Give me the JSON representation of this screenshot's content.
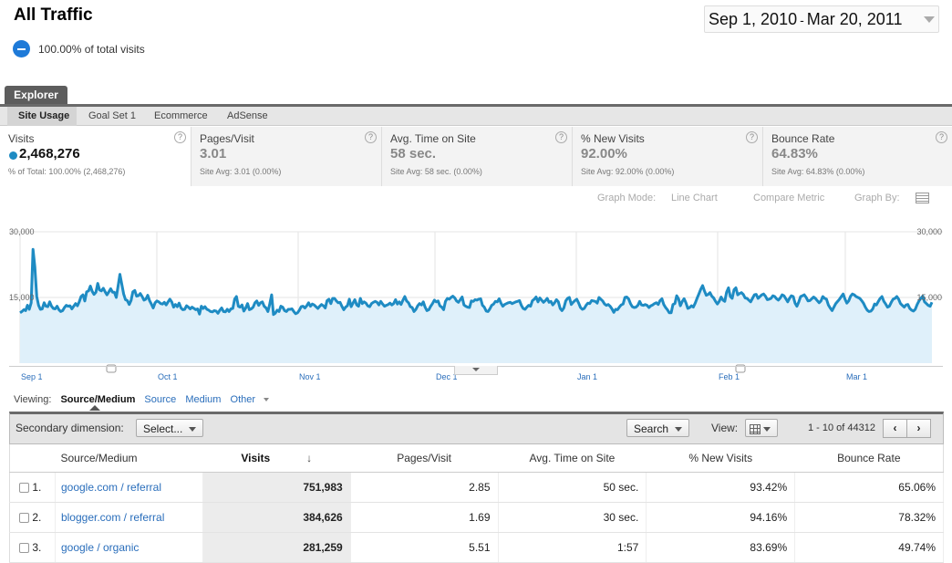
{
  "header": {
    "title": "All Traffic",
    "segment_label": "100.00% of total visits",
    "date_start": "Sep 1, 2010",
    "date_sep": "-",
    "date_end": "Mar 20, 2011"
  },
  "explorer_tab": "Explorer",
  "subtabs": [
    "Site Usage",
    "Goal Set 1",
    "Ecommerce",
    "AdSense"
  ],
  "metrics": [
    {
      "name": "Visits",
      "value": "2,468,276",
      "sub": "% of Total: 100.00% (2,468,276)"
    },
    {
      "name": "Pages/Visit",
      "value": "3.01",
      "sub": "Site Avg: 3.01 (0.00%)"
    },
    {
      "name": "Avg. Time on Site",
      "value": "58 sec.",
      "sub": "Site Avg: 58 sec. (0.00%)"
    },
    {
      "name": "% New Visits",
      "value": "92.00%",
      "sub": "Site Avg: 92.00% (0.00%)"
    },
    {
      "name": "Bounce Rate",
      "value": "64.83%",
      "sub": "Site Avg: 64.83% (0.00%)"
    }
  ],
  "metric_help": "?",
  "graph_controls": {
    "mode_label": "Graph Mode:",
    "mode_value": "Line Chart",
    "compare": "Compare Metric",
    "graph_by": "Graph By:"
  },
  "chart_data": {
    "type": "area",
    "series": [
      {
        "name": "Visits",
        "color": "#1e8bc3"
      }
    ],
    "y_ticks": [
      "30,000",
      "15,000"
    ],
    "ylim": [
      0,
      30000
    ],
    "x_tick_labels": [
      "Sep 1",
      "Oct 1",
      "Nov 1",
      "Dec 1",
      "Jan 1",
      "Feb 1",
      "Mar 1"
    ],
    "x_tick_days": [
      0,
      30,
      61,
      91,
      122,
      153,
      181
    ],
    "x_range_days": [
      0,
      200
    ],
    "grid": true,
    "annotation_markers_days": [
      20,
      158
    ],
    "y": [
      11500,
      11800,
      12200,
      12000,
      13200,
      12300,
      13800,
      26000,
      22000,
      15200,
      13200,
      12300,
      12400,
      13800,
      13000,
      12900,
      14000,
      13000,
      12500,
      12400,
      13000,
      12200,
      11800,
      12000,
      12700,
      13200,
      13000,
      13100,
      12400,
      13000,
      13600,
      13100,
      14000,
      15200,
      15600,
      14200,
      16300,
      16500,
      17600,
      16400,
      15700,
      16200,
      18200,
      16700,
      16500,
      17100,
      16300,
      15600,
      16300,
      17000,
      16200,
      16200,
      15000,
      17600,
      20300,
      18000,
      15800,
      14500,
      14300,
      13400,
      14300,
      16300,
      16600,
      15300,
      15400,
      15900,
      15200,
      14400,
      14600,
      15500,
      14300,
      13500,
      12600,
      13800,
      14200,
      14000,
      13600,
      13500,
      13900,
      13300,
      14000,
      14600,
      14000,
      12800,
      13400,
      12900,
      13700,
      12600,
      12200,
      12300,
      13100,
      12800,
      12400,
      12800,
      12500,
      12200,
      12400,
      11200,
      13000,
      12500,
      12900,
      12300,
      12100,
      11800,
      11700,
      12000,
      11900,
      11400,
      12100,
      12600,
      11800,
      11700,
      12300,
      11800,
      12400,
      12500,
      14600,
      15200,
      13000,
      12800,
      13300,
      11900,
      12600,
      13600,
      12200,
      12400,
      12800,
      13800,
      14200,
      13200,
      13800,
      14000,
      13000,
      12600,
      11800,
      13500,
      15600,
      11100,
      11400,
      12100,
      11800,
      13000,
      12800,
      12000,
      11800,
      12300,
      12300,
      12400,
      11800,
      11300,
      11500,
      12100,
      12900,
      13000,
      12600,
      13100,
      13800,
      13000,
      13500,
      13300,
      12900,
      12500,
      13000,
      13400,
      13100,
      12600,
      14300,
      14600,
      13600,
      14800,
      14800,
      14200,
      13800,
      13900,
      13000,
      12200,
      12800,
      13100,
      14600,
      12900,
      13700,
      14500,
      13300,
      13000,
      14800,
      13600,
      14000,
      13700,
      13100,
      12900,
      13600,
      13900,
      14100,
      13900,
      13300,
      14100,
      13500,
      13000,
      13200,
      13400,
      13700,
      13300,
      13600,
      14500,
      13500,
      14000,
      13400,
      14400,
      15200,
      14200,
      13800,
      12900,
      12700,
      11800,
      12300,
      13100,
      13600,
      13300,
      14000,
      12800,
      12000,
      12200,
      13000,
      13600,
      14400,
      14000,
      14200,
      13100,
      12800,
      12200,
      14100,
      14800,
      14600,
      15000,
      15300,
      14900,
      14200,
      13900,
      14500,
      15100,
      13300,
      13000,
      12800,
      12700,
      14200,
      14100,
      14500,
      14400,
      14600,
      14700,
      13200,
      12800,
      11900,
      11800,
      12400,
      13200,
      13500,
      14100,
      14000,
      14700,
      13700,
      13000,
      13400,
      13600,
      13800,
      13900,
      13600,
      13800,
      14000,
      14100,
      14300,
      13200,
      12500,
      12300,
      12800,
      13200,
      13000,
      14300,
      14600,
      15100,
      14000,
      14900,
      14400,
      13900,
      14300,
      14800,
      13900,
      14100,
      13300,
      13800,
      14500,
      14000,
      12500,
      12000,
      12600,
      14200,
      14800,
      15000,
      13400,
      13900,
      14300,
      14600,
      13700,
      12700,
      12300,
      12500,
      13200,
      13700,
      13600,
      14300,
      14200,
      14100,
      13700,
      15000,
      14600,
      14200,
      13500,
      13200,
      13400,
      13000,
      12400,
      11600,
      12300,
      12200,
      12800,
      13300,
      13500,
      15000,
      15100,
      14700,
      13600,
      12900,
      12700,
      12800,
      13200,
      14100,
      13300,
      13200,
      13400,
      13200,
      12700,
      13100,
      13300,
      13600,
      13800,
      13400,
      14300,
      14700,
      13400,
      12700,
      12200,
      11500,
      11500,
      13400,
      13600,
      15400,
      14700,
      13100,
      14100,
      14700,
      13800,
      12500,
      12700,
      13100,
      12800,
      13700,
      14800,
      15800,
      16900,
      17700,
      16500,
      15500,
      15700,
      16100,
      15300,
      14900,
      14100,
      13500,
      14100,
      15100,
      14400,
      14100,
      16200,
      17200,
      15200,
      14800,
      16800,
      17200,
      15600,
      15900,
      16100,
      15700,
      14900,
      14800,
      14400,
      14000,
      14800,
      15600,
      15700,
      14800,
      15200,
      15600,
      15800,
      15300,
      14500,
      14600,
      14800,
      15400,
      15200,
      14700,
      14400,
      14900,
      15600,
      15400,
      14700,
      14000,
      14800,
      15400,
      15200,
      13700,
      13000,
      14000,
      15200,
      15400,
      15600,
      15000,
      14200,
      14300,
      14700,
      15100,
      14800,
      14300,
      13800,
      14200,
      15200,
      14800,
      14600,
      13300,
      12600,
      12000,
      12800,
      13600,
      14100,
      14600,
      15200,
      15800,
      14600,
      13700,
      14200,
      15300,
      15800,
      15600,
      15200,
      15000,
      14800,
      14300,
      13700,
      12800,
      12100,
      11800,
      11900,
      12400,
      13500,
      13300,
      14100,
      14800,
      15200,
      14100,
      13500,
      12800,
      13000,
      13900,
      14600,
      14800,
      15200,
      14600,
      13600,
      13200,
      12800,
      13300,
      13400,
      12500,
      12100,
      11900,
      12300,
      13400,
      14200,
      14800,
      15300,
      14000,
      13600,
      13200,
      13000,
      13900
    ]
  },
  "viewing": {
    "label": "Viewing:",
    "options": [
      "Source/Medium",
      "Source",
      "Medium",
      "Other"
    ]
  },
  "toolbar": {
    "secondary_label": "Secondary dimension:",
    "select_label": "Select...",
    "search_label": "Search",
    "view_label": "View:",
    "pager_text": "1 - 10 of 44312",
    "prev": "‹",
    "next": "›"
  },
  "table": {
    "headers": [
      "Source/Medium",
      "Visits",
      "Pages/Visit",
      "Avg. Time on Site",
      "% New Visits",
      "Bounce Rate"
    ],
    "rows": [
      {
        "idx": "1.",
        "source": "google.com / referral",
        "visits": "751,983",
        "pages": "2.85",
        "time": "50 sec.",
        "new": "93.42%",
        "bounce": "65.06%"
      },
      {
        "idx": "2.",
        "source": "blogger.com / referral",
        "visits": "384,626",
        "pages": "1.69",
        "time": "30 sec.",
        "new": "94.16%",
        "bounce": "78.32%"
      },
      {
        "idx": "3.",
        "source": "google / organic",
        "visits": "281,259",
        "pages": "5.51",
        "time": "1:57",
        "new": "83.69%",
        "bounce": "49.74%"
      }
    ]
  }
}
